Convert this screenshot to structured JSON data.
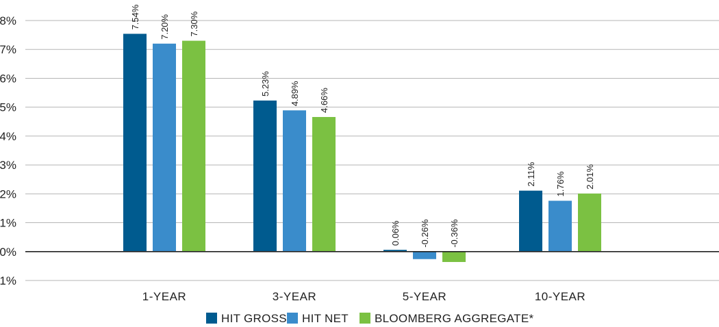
{
  "chart_data": {
    "type": "bar",
    "title": "",
    "xlabel": "",
    "ylabel": "",
    "categories": [
      "1-YEAR",
      "3-YEAR",
      "5-YEAR",
      "10-YEAR"
    ],
    "series": [
      {
        "name": "HIT GROSS",
        "color": "#005b8f",
        "values": [
          7.54,
          5.23,
          0.06,
          2.11
        ],
        "labels": [
          "7.54%",
          "5.23%",
          "0.06%",
          "2.11%"
        ]
      },
      {
        "name": "HIT NET",
        "color": "#3a8ccb",
        "values": [
          7.2,
          4.89,
          -0.26,
          1.76
        ],
        "labels": [
          "7.20%",
          "4.89%",
          "-0.26%",
          "1.76%"
        ]
      },
      {
        "name": "BLOOMBERG AGGREGATE*",
        "color": "#7bc142",
        "values": [
          7.3,
          4.66,
          -0.36,
          2.01
        ],
        "labels": [
          "7.30%",
          "4.66%",
          "-0.36%",
          "2.01%"
        ]
      }
    ],
    "ylim": [
      -1,
      8
    ],
    "yticks": [
      8,
      7,
      6,
      5,
      4,
      3,
      2,
      1,
      0,
      -1
    ],
    "ytick_labels": [
      "8%",
      "7%",
      "6%",
      "5%",
      "4%",
      "3%",
      "2%",
      "1%",
      "0%",
      "-1%"
    ],
    "grid": true,
    "legend_position": "bottom-center"
  }
}
